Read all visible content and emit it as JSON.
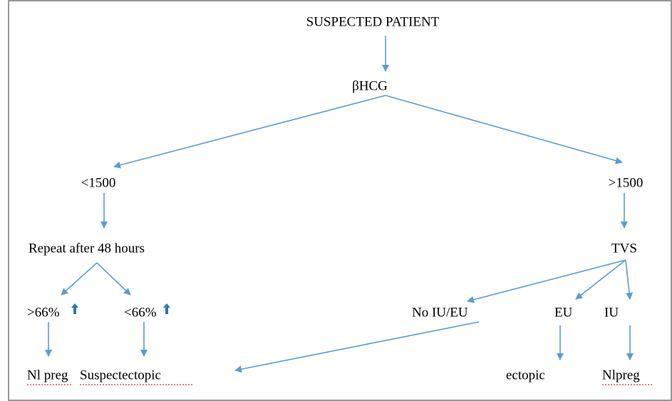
{
  "nodes": [
    {
      "label": "SUSPECTED PATIENT"
    },
    {
      "label": "βHCG"
    },
    {
      "label": "<1500"
    },
    {
      "label": ">1500"
    },
    {
      "label": "Repeat after 48 hours"
    },
    {
      "label": "TVS"
    },
    {
      "label": ">66%"
    },
    {
      "label": "<66%"
    },
    {
      "label": "No IU/EU"
    },
    {
      "label": "EU"
    },
    {
      "label": "IU"
    },
    {
      "label": "Nl preg"
    },
    {
      "label": "Suspectectopic"
    },
    {
      "label": "ectopic"
    },
    {
      "label": "Nlpreg"
    }
  ]
}
